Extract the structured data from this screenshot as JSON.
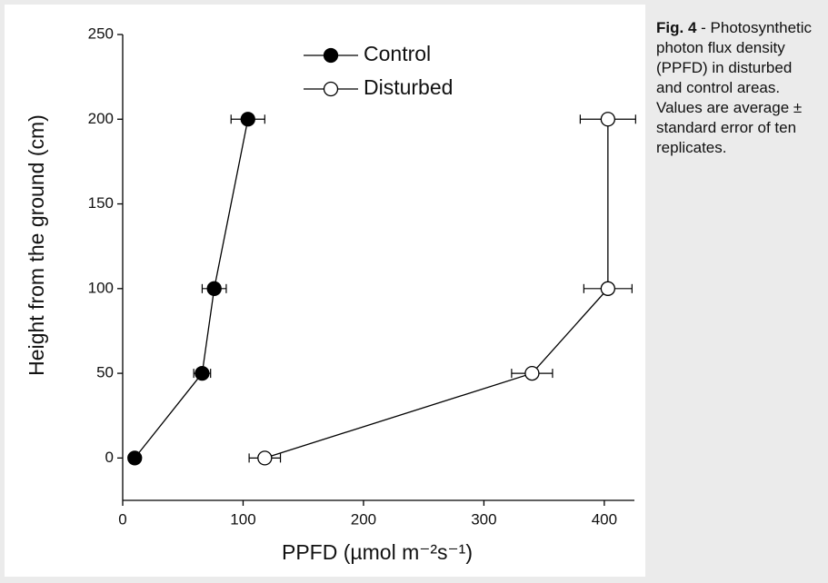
{
  "chart_data": {
    "type": "line",
    "xlabel": "PPFD (µmol m⁻²s⁻¹)",
    "ylabel": "Height from the ground (cm)",
    "xlim": [
      0,
      425
    ],
    "xticks": [
      0,
      100,
      200,
      300,
      400
    ],
    "ylim": [
      -25,
      250
    ],
    "yticks": [
      0,
      50,
      100,
      150,
      200,
      250
    ],
    "legend": "upper center",
    "series": [
      {
        "name": "Control",
        "color": "#000000",
        "markerfacecolor": "#000000",
        "x": [
          10,
          66,
          76,
          104
        ],
        "xerr": [
          0,
          7,
          10,
          14
        ],
        "y": [
          0,
          50,
          100,
          200
        ]
      },
      {
        "name": "Disturbed",
        "color": "#000000",
        "markerfacecolor": "#ffffff",
        "x": [
          118,
          340,
          403,
          403
        ],
        "xerr": [
          13,
          17,
          20,
          23
        ],
        "y": [
          0,
          50,
          100,
          200
        ]
      }
    ]
  },
  "caption": {
    "label": "Fig. 4",
    "text": "- Photosynthetic photon flux density (PPFD) in disturbed and control areas. Values are average ± standard error of ten replicates."
  }
}
